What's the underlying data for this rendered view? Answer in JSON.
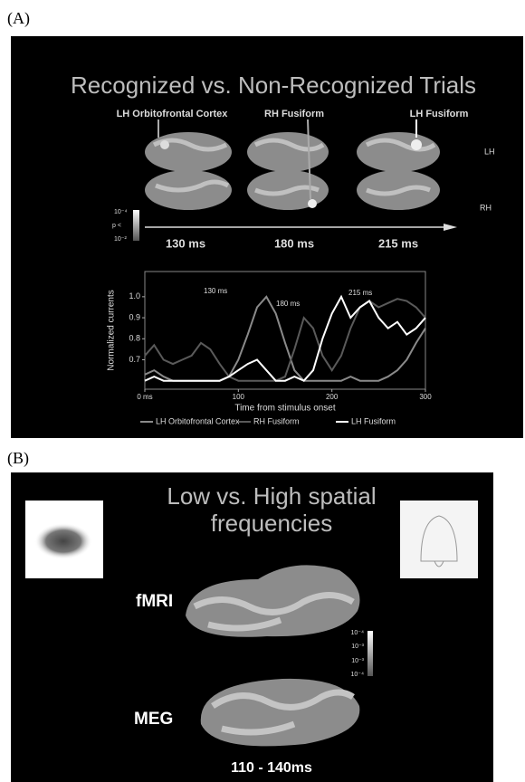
{
  "panel_a": {
    "label": "(A)",
    "title": "Recognized vs. Non-Recognized Trials",
    "region_labels": [
      "LH Orbitofrontal Cortex",
      "RH Fusiform",
      "LH Fusiform"
    ],
    "hemisphere_labels": [
      "LH",
      "RH"
    ],
    "colorbar_labels": [
      "10⁻⁴",
      "p <",
      "10⁻²"
    ],
    "time_labels": [
      "130 ms",
      "180 ms",
      "215 ms"
    ]
  },
  "chart_data": {
    "type": "line",
    "ylabel": "Normalized currents",
    "xlabel": "Time from stimulus onset",
    "annotations": [
      "130 ms",
      "180 ms",
      "215 ms"
    ],
    "x": [
      0,
      10,
      20,
      30,
      40,
      50,
      60,
      70,
      80,
      90,
      100,
      110,
      120,
      130,
      140,
      150,
      160,
      170,
      180,
      190,
      200,
      210,
      220,
      230,
      240,
      250,
      260,
      270,
      280,
      290,
      300
    ],
    "series": [
      {
        "name": "LH Orbitofrontal Cortex",
        "color": "#8a8a8a",
        "values": [
          0.63,
          0.65,
          0.62,
          0.6,
          0.6,
          0.6,
          0.6,
          0.6,
          0.6,
          0.62,
          0.7,
          0.82,
          0.95,
          1.0,
          0.92,
          0.78,
          0.65,
          0.6,
          0.6,
          0.6,
          0.6,
          0.6,
          0.62,
          0.6,
          0.6,
          0.6,
          0.62,
          0.65,
          0.7,
          0.78,
          0.85
        ]
      },
      {
        "name": "RH Fusiform",
        "color": "#5a5a5a",
        "values": [
          0.72,
          0.77,
          0.7,
          0.68,
          0.7,
          0.72,
          0.78,
          0.75,
          0.68,
          0.62,
          0.6,
          0.6,
          0.6,
          0.6,
          0.6,
          0.62,
          0.75,
          0.9,
          0.85,
          0.72,
          0.65,
          0.72,
          0.85,
          0.95,
          0.98,
          0.95,
          0.97,
          0.99,
          0.98,
          0.95,
          0.9
        ]
      },
      {
        "name": "LH Fusiform",
        "color": "#ffffff",
        "values": [
          0.6,
          0.62,
          0.6,
          0.6,
          0.6,
          0.6,
          0.6,
          0.6,
          0.6,
          0.62,
          0.65,
          0.68,
          0.7,
          0.65,
          0.6,
          0.6,
          0.62,
          0.6,
          0.65,
          0.8,
          0.92,
          1.0,
          0.9,
          0.95,
          0.98,
          0.9,
          0.85,
          0.88,
          0.82,
          0.85,
          0.9
        ]
      }
    ],
    "xlim": [
      0,
      300
    ],
    "xticks": [
      {
        "value": 0,
        "label": "0 ms"
      },
      100,
      200,
      300
    ],
    "ylim": [
      0.56,
      1.12
    ],
    "yticks": [
      0.7,
      0.8,
      0.9,
      {
        "value": 1,
        "label": "1.0"
      }
    ]
  },
  "panel_b": {
    "label": "(B)",
    "title_lines": [
      "Low vs. High spatial",
      "frequencies"
    ],
    "method_labels": [
      "fMRI",
      "MEG"
    ],
    "colorbar_labels": [
      "10⁻⁴",
      "10⁻³",
      "10⁻³",
      "10⁻⁴"
    ],
    "time_window": "110 - 140ms"
  }
}
